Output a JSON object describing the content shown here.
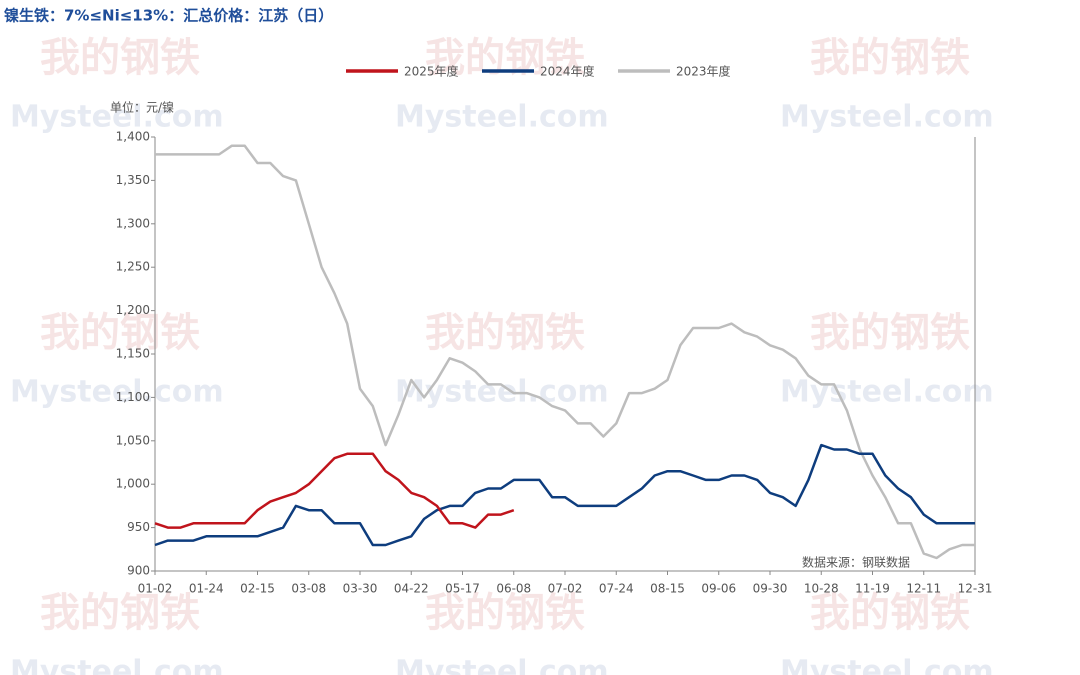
{
  "chart_data": {
    "type": "line",
    "title": "镍生铁：7%≤Ni≤13%：汇总价格：江苏（日）",
    "unit_label": "单位：元/镍",
    "source": "数据来源：钢联数据",
    "watermark": [
      "我的钢铁",
      "Mysteel.com"
    ],
    "x": [
      "01-02",
      null,
      null,
      null,
      "01-24",
      null,
      null,
      null,
      "02-15",
      null,
      null,
      null,
      "03-08",
      null,
      null,
      null,
      "03-30",
      null,
      null,
      null,
      "04-22",
      null,
      null,
      null,
      "05-17",
      null,
      null,
      null,
      "06-08",
      null,
      null,
      null,
      "07-02",
      null,
      null,
      null,
      "07-24",
      null,
      null,
      null,
      "08-15",
      null,
      null,
      null,
      "09-06",
      null,
      null,
      null,
      "09-30",
      null,
      null,
      null,
      "10-28",
      null,
      null,
      null,
      "11-19",
      null,
      null,
      null,
      "12-11",
      null,
      null,
      null,
      "12-31"
    ],
    "series": [
      {
        "name": "2025年度",
        "color": "#c0141c",
        "values": [
          955,
          950,
          950,
          955,
          955,
          955,
          955,
          955,
          970,
          980,
          985,
          990,
          1000,
          1015,
          1030,
          1035,
          1035,
          1035,
          1015,
          1005,
          990,
          985,
          975,
          955,
          955,
          950,
          965,
          965,
          970,
          null,
          null,
          null,
          null,
          null,
          null,
          null,
          null,
          null,
          null,
          null,
          null,
          null,
          null,
          null,
          null,
          null,
          null,
          null,
          null,
          null,
          null,
          null,
          null,
          null,
          null,
          null,
          null,
          null,
          null,
          null,
          null,
          null,
          null,
          null,
          null
        ]
      },
      {
        "name": "2024年度",
        "color": "#0e3d7e",
        "values": [
          930,
          935,
          935,
          935,
          940,
          940,
          940,
          940,
          940,
          945,
          950,
          975,
          970,
          970,
          955,
          955,
          955,
          930,
          930,
          935,
          940,
          960,
          970,
          975,
          975,
          990,
          995,
          995,
          1005,
          1005,
          1005,
          985,
          985,
          975,
          975,
          975,
          975,
          985,
          995,
          1010,
          1015,
          1015,
          1010,
          1005,
          1005,
          1010,
          1010,
          1005,
          990,
          985,
          975,
          1005,
          1045,
          1040,
          1040,
          1035,
          1035,
          1010,
          995,
          985,
          965,
          955,
          955,
          955,
          955
        ]
      },
      {
        "name": "2023年度",
        "color": "#bdbdbd",
        "values": [
          1380,
          1380,
          1380,
          1380,
          1380,
          1380,
          1390,
          1390,
          1370,
          1370,
          1355,
          1350,
          1300,
          1250,
          1220,
          1185,
          1110,
          1090,
          1045,
          1080,
          1120,
          1100,
          1120,
          1145,
          1140,
          1130,
          1115,
          1115,
          1105,
          1105,
          1100,
          1090,
          1085,
          1070,
          1070,
          1055,
          1070,
          1105,
          1105,
          1110,
          1120,
          1160,
          1180,
          1180,
          1180,
          1185,
          1175,
          1170,
          1160,
          1155,
          1145,
          1125,
          1115,
          1115,
          1085,
          1040,
          1010,
          985,
          955,
          955,
          920,
          915,
          925,
          930,
          930
        ]
      }
    ],
    "ylim": [
      900,
      1400
    ],
    "yticks": [
      900,
      950,
      {
        "value": 1000,
        "label": "1,000"
      },
      {
        "value": 1050,
        "label": "1,050"
      },
      {
        "value": 1100,
        "label": "1,100"
      },
      {
        "value": 1150,
        "label": "1,150"
      },
      {
        "value": 1200,
        "label": "1,200"
      },
      {
        "value": 1250,
        "label": "1,250"
      },
      {
        "value": 1300,
        "label": "1,300"
      },
      {
        "value": 1350,
        "label": "1,350"
      },
      {
        "value": 1400,
        "label": "1,400"
      }
    ],
    "grid": false,
    "legend": "top"
  }
}
